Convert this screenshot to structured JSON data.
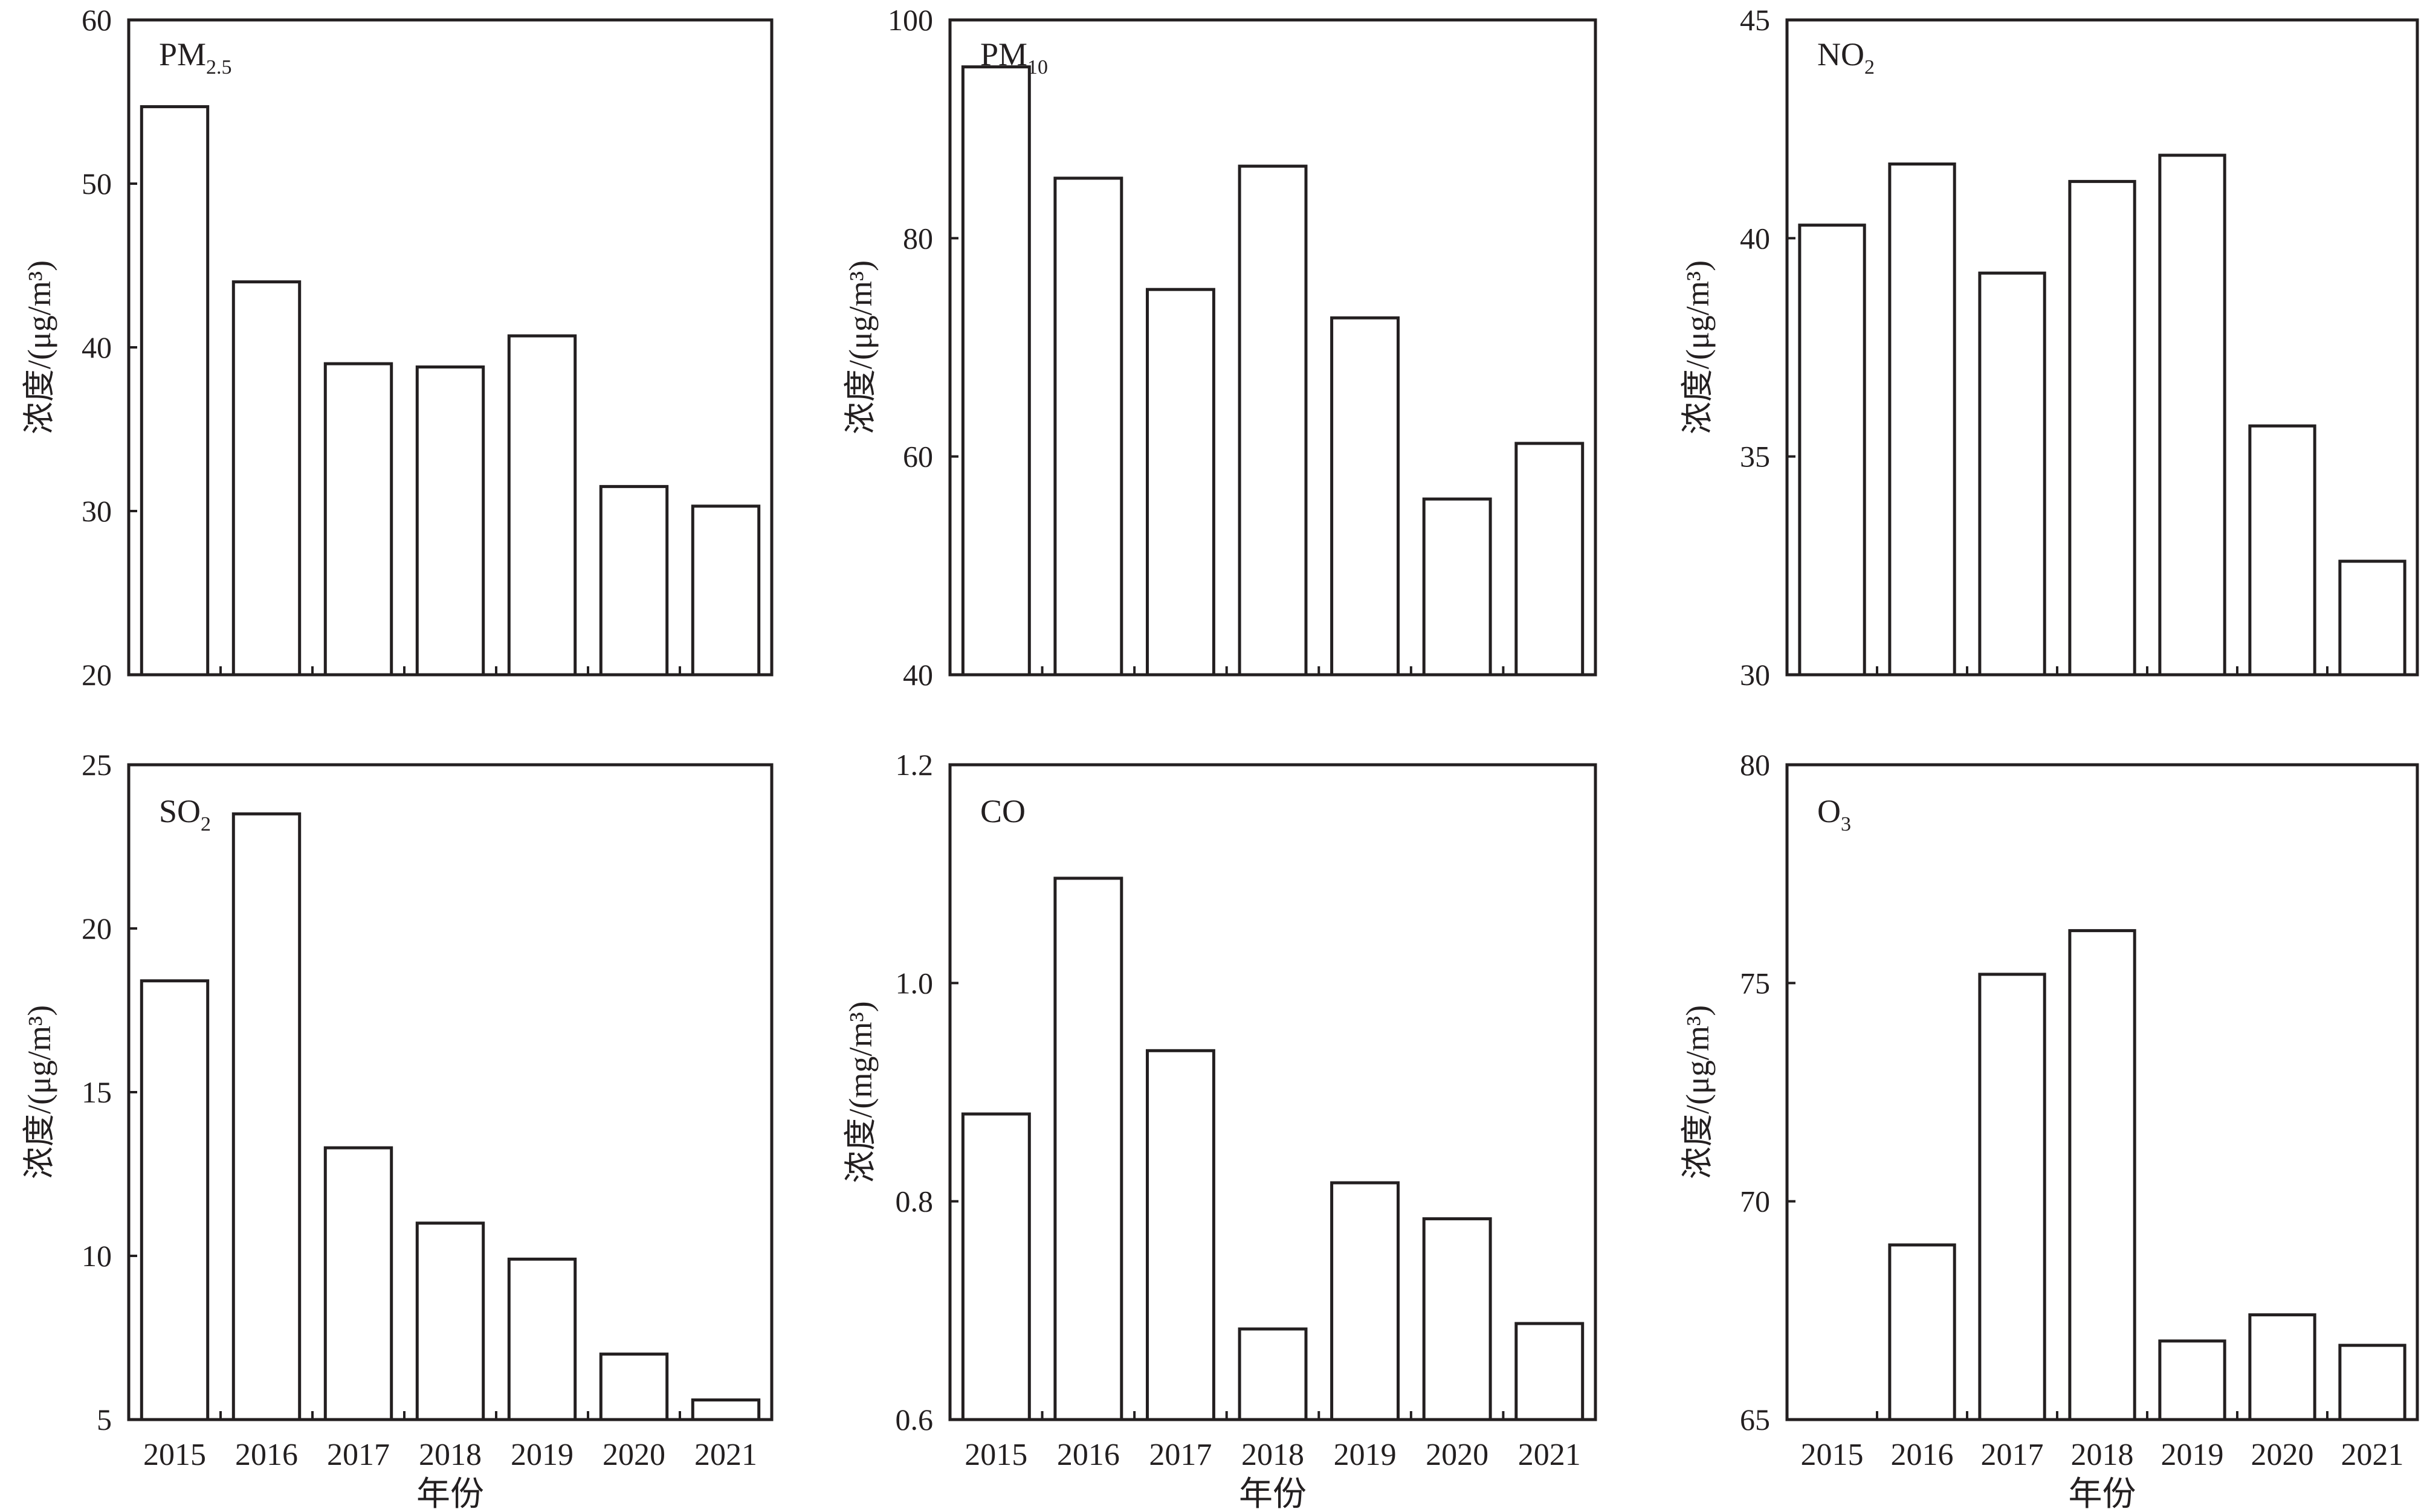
{
  "chart_data": [
    {
      "type": "bar",
      "label": "PM",
      "label_sub": "2.5",
      "ylabel": "浓度/(μg/m³)",
      "xlabel": "",
      "ylim": [
        20,
        60
      ],
      "yticks": [
        "20",
        "30",
        "40",
        "50",
        "60"
      ],
      "categories": [
        "2015",
        "2016",
        "2017",
        "2018",
        "2019",
        "2020",
        "2021"
      ],
      "values": [
        54.7,
        44.0,
        39.0,
        38.8,
        40.7,
        31.5,
        30.3
      ]
    },
    {
      "type": "bar",
      "label": "PM",
      "label_sub": "10",
      "ylabel": "浓度/(μg/m³)",
      "xlabel": "",
      "ylim": [
        40,
        100
      ],
      "yticks": [
        "40",
        "60",
        "80",
        "100"
      ],
      "categories": [
        "2015",
        "2016",
        "2017",
        "2018",
        "2019",
        "2020",
        "2021"
      ],
      "values": [
        95.7,
        85.5,
        75.3,
        86.6,
        72.7,
        56.1,
        61.2
      ]
    },
    {
      "type": "bar",
      "label": "NO",
      "label_sub": "2",
      "ylabel": "浓度/(μg/m³)",
      "xlabel": "",
      "ylim": [
        30,
        45
      ],
      "yticks": [
        "30",
        "35",
        "40",
        "45"
      ],
      "categories": [
        "2015",
        "2016",
        "2017",
        "2018",
        "2019",
        "2020",
        "2021"
      ],
      "values": [
        40.3,
        41.7,
        39.2,
        41.3,
        41.9,
        35.7,
        32.6
      ]
    },
    {
      "type": "bar",
      "label": "SO",
      "label_sub": "2",
      "ylabel": "浓度/(μg/m³)",
      "xlabel": "年份",
      "ylim": [
        5,
        25
      ],
      "yticks": [
        "5",
        "10",
        "15",
        "20",
        "25"
      ],
      "categories": [
        "2015",
        "2016",
        "2017",
        "2018",
        "2019",
        "2020",
        "2021"
      ],
      "values": [
        18.4,
        23.5,
        13.3,
        11.0,
        9.9,
        7.0,
        5.6
      ]
    },
    {
      "type": "bar",
      "label": "CO",
      "label_sub": "",
      "ylabel": "浓度/(mg/m³)",
      "xlabel": "年份",
      "ylim": [
        0.6,
        1.2
      ],
      "yticks": [
        "0.6",
        "0.8",
        "1.0",
        "1.2"
      ],
      "categories": [
        "2015",
        "2016",
        "2017",
        "2018",
        "2019",
        "2020",
        "2021"
      ],
      "values": [
        0.88,
        1.096,
        0.938,
        0.683,
        0.817,
        0.784,
        0.688
      ]
    },
    {
      "type": "bar",
      "label": "O",
      "label_sub": "3",
      "ylabel": "浓度/(μg/m³)",
      "xlabel": "年份",
      "ylim": [
        65,
        80
      ],
      "yticks": [
        "65",
        "70",
        "75",
        "80"
      ],
      "categories": [
        "2015",
        "2016",
        "2017",
        "2018",
        "2019",
        "2020",
        "2021"
      ],
      "values": [
        65,
        69.0,
        75.2,
        76.2,
        66.8,
        67.4,
        66.7
      ]
    }
  ]
}
